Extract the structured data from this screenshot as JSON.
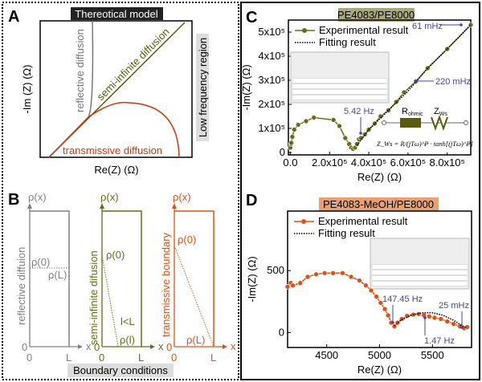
{
  "panelA": {
    "letter": "A",
    "title": "Thereotical model",
    "xlabel": "Re(Z) (Ω)",
    "ylabel": "-Im (Z) (Ω)",
    "side_label": "Low frequency region",
    "curves": [
      "reflective diffusion",
      "semi-infinite diffusion",
      "transmissive diffusion"
    ]
  },
  "panelB": {
    "letter": "B",
    "caption": "Boundary conditions",
    "y_axis": "ρ(x)",
    "x_axis": "x",
    "zero": "0",
    "L": "L",
    "sub": [
      {
        "label": "reflective diffuion",
        "p0": "ρ(0)",
        "pend": "ρ(L)",
        "color": "#808080"
      },
      {
        "label": "semi-infinite difusion",
        "p0": "ρ(0)",
        "pend": "ρ(l)",
        "note": "l<L",
        "color": "#6b6b1a"
      },
      {
        "label": "transmissive boundary",
        "p0": "ρ(0)",
        "pend": "ρ(L)",
        "color": "#d9541a"
      }
    ]
  },
  "colors": {
    "olive": "#6b6b1a",
    "orange": "#d9541a",
    "annot": "#4a3fa0"
  },
  "chart_data": [
    {
      "type": "scatter",
      "panel": "C",
      "title": "PE4083/PE8000",
      "xlabel": "Re(Z) (Ω)",
      "ylabel": "-Im(Z) (Ω)",
      "xlim": [
        -10000,
        920000
      ],
      "ylim": [
        -10000,
        550000
      ],
      "xticks": [
        "0.0",
        "2.0x10⁵",
        "4.0x10⁵",
        "6.0x10⁵",
        "8.0x10⁵"
      ],
      "xtick_values": [
        0,
        200000,
        400000,
        600000,
        800000
      ],
      "yticks": [
        "0",
        "1x10⁵",
        "2x10⁵",
        "3x10⁵",
        "4x10⁵",
        "5x10⁵"
      ],
      "ytick_values": [
        0,
        100000,
        200000,
        300000,
        400000,
        500000
      ],
      "legend": [
        "Experimental result",
        "Fitting result"
      ],
      "series": [
        {
          "name": "Experimental result",
          "x": [
            0,
            3000,
            5000,
            10000,
            20000,
            40000,
            80000,
            120000,
            220000,
            250000,
            280000,
            300000,
            310000,
            320000,
            330000,
            340000,
            350000,
            360000,
            380000,
            400000,
            430000,
            460000,
            500000,
            540000,
            580000,
            640000,
            700000,
            800000,
            920000
          ],
          "y": [
            20000,
            35000,
            40000,
            65000,
            95000,
            115000,
            130000,
            145000,
            135000,
            110000,
            60000,
            35000,
            20000,
            15000,
            20000,
            35000,
            55000,
            60000,
            75000,
            95000,
            120000,
            150000,
            175000,
            210000,
            250000,
            295000,
            350000,
            430000,
            530000
          ]
        },
        {
          "name": "Fitting result",
          "x": [
            340000,
            400000,
            500000,
            600000,
            700000,
            800000,
            920000
          ],
          "y": [
            30000,
            95000,
            175000,
            255000,
            350000,
            430000,
            530000
          ]
        }
      ],
      "annotations": [
        "61 mHz",
        "220 mHz",
        "5.42 Hz"
      ],
      "circuit": {
        "r": "R",
        "r_sub": "ohmic",
        "z": "Z",
        "z_sub": "Ws",
        "equation": "Z_Ws = R/(jTω)^P · tanh[(jTω)^P]"
      }
    },
    {
      "type": "scatter",
      "panel": "D",
      "title": "PE4083-MeOH/PE8000",
      "xlabel": "Re(Z) (Ω)",
      "ylabel": "-Im(Z) (Ω)",
      "xlim": [
        4130,
        5870
      ],
      "ylim": [
        -120,
        980
      ],
      "xticks": [
        "4500",
        "5000",
        "5500"
      ],
      "xtick_values": [
        4500,
        5000,
        5500
      ],
      "yticks": [
        "0",
        "500"
      ],
      "ytick_values": [
        0,
        500
      ],
      "legend": [
        "Experimental result",
        "Fitting result"
      ],
      "series": [
        {
          "name": "Experimental result",
          "x": [
            4130,
            4160,
            4180,
            4250,
            4320,
            4400,
            4480,
            4560,
            4650,
            4730,
            4810,
            4870,
            4920,
            4970,
            5010,
            5050,
            5080,
            5110,
            5140,
            5170,
            5210,
            5260,
            5320,
            5370,
            5420,
            5470,
            5520,
            5580,
            5640,
            5700,
            5760,
            5800,
            5830
          ],
          "y": [
            370,
            400,
            380,
            400,
            450,
            470,
            480,
            480,
            480,
            450,
            420,
            380,
            340,
            290,
            240,
            190,
            140,
            80,
            50,
            80,
            110,
            135,
            145,
            150,
            140,
            130,
            120,
            110,
            90,
            70,
            50,
            35,
            45
          ]
        },
        {
          "name": "Fitting result",
          "x": [
            5140,
            5200,
            5300,
            5400,
            5500,
            5600,
            5700,
            5780,
            5820
          ],
          "y": [
            55,
            100,
            140,
            160,
            160,
            140,
            100,
            55,
            40
          ]
        }
      ],
      "annotations": [
        "147.45 Hz",
        "1.47 Hz",
        "25 mHz"
      ]
    }
  ]
}
